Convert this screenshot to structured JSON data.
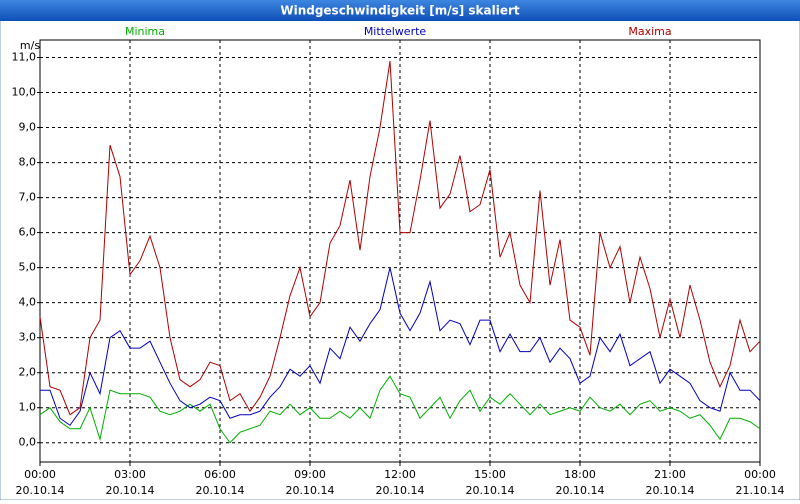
{
  "chart_data": {
    "type": "line",
    "title": "Windgeschwindigkeit [m/s] skaliert",
    "y_label": "m/s",
    "x": [
      0,
      20,
      40,
      60,
      80,
      100,
      120,
      140,
      160,
      180,
      200,
      220,
      240,
      260,
      280,
      300,
      320,
      340,
      360,
      380,
      400,
      420,
      440,
      460,
      480,
      500,
      520,
      540,
      560,
      580,
      600,
      620,
      640,
      660,
      680,
      700,
      720,
      740,
      760,
      780,
      800,
      820,
      840,
      860,
      880,
      900,
      920,
      940,
      960,
      980,
      1000,
      1020,
      1040,
      1060,
      1080,
      1100,
      1120,
      1140,
      1160,
      1180,
      1200,
      1220,
      1240,
      1260,
      1280,
      1300,
      1320,
      1340,
      1360,
      1380,
      1400,
      1420,
      1440
    ],
    "series": [
      {
        "name": "Minima",
        "color": "#00b000",
        "values": [
          0.8,
          1.0,
          0.6,
          0.4,
          0.4,
          1.0,
          0.1,
          1.5,
          1.4,
          1.4,
          1.4,
          1.3,
          0.9,
          0.8,
          0.9,
          1.1,
          0.9,
          1.1,
          0.4,
          0.0,
          0.3,
          0.4,
          0.5,
          0.9,
          0.8,
          1.1,
          0.8,
          1.0,
          0.7,
          0.7,
          0.9,
          0.7,
          1.0,
          0.7,
          1.5,
          1.9,
          1.4,
          1.3,
          0.7,
          1.0,
          1.3,
          0.7,
          1.2,
          1.5,
          0.9,
          1.3,
          1.1,
          1.4,
          1.1,
          0.8,
          1.1,
          0.8,
          0.9,
          1.0,
          0.9,
          1.3,
          1.0,
          0.9,
          1.1,
          0.8,
          1.1,
          1.2,
          0.9,
          1.0,
          0.9,
          0.7,
          0.8,
          0.5,
          0.1,
          0.7,
          0.7,
          0.6,
          0.4
        ]
      },
      {
        "name": "Mittelwerte",
        "color": "#0000c0",
        "values": [
          1.5,
          1.5,
          0.7,
          0.5,
          0.9,
          2.0,
          1.4,
          3.0,
          3.2,
          2.7,
          2.7,
          2.9,
          2.3,
          1.7,
          1.2,
          1.0,
          1.1,
          1.3,
          1.2,
          0.7,
          0.8,
          0.8,
          0.9,
          1.3,
          1.6,
          2.1,
          1.9,
          2.2,
          1.7,
          2.7,
          2.4,
          3.3,
          2.9,
          3.4,
          3.8,
          5.0,
          3.7,
          3.2,
          3.7,
          4.6,
          3.2,
          3.5,
          3.4,
          2.8,
          3.5,
          3.5,
          2.6,
          3.1,
          2.6,
          2.6,
          3.0,
          2.3,
          2.7,
          2.4,
          1.7,
          1.9,
          3.0,
          2.6,
          3.1,
          2.2,
          2.4,
          2.6,
          1.7,
          2.1,
          1.9,
          1.7,
          1.2,
          1.0,
          0.9,
          2.0,
          1.5,
          1.5,
          1.2
        ]
      },
      {
        "name": "Maxima",
        "color": "#b00000",
        "values": [
          3.6,
          1.6,
          1.5,
          0.8,
          1.0,
          3.0,
          3.5,
          8.5,
          7.6,
          4.8,
          5.2,
          5.9,
          5.0,
          3.0,
          1.8,
          1.6,
          1.8,
          2.3,
          2.2,
          1.2,
          1.4,
          0.9,
          1.3,
          1.9,
          3.0,
          4.2,
          5.0,
          3.6,
          4.0,
          5.7,
          6.2,
          7.5,
          5.5,
          7.6,
          9.0,
          10.9,
          6.0,
          6.0,
          7.5,
          9.2,
          6.7,
          7.1,
          8.2,
          6.6,
          6.8,
          7.8,
          5.3,
          6.0,
          4.5,
          4.0,
          7.2,
          4.5,
          5.8,
          3.5,
          3.3,
          2.5,
          6.0,
          5.0,
          5.6,
          4.0,
          5.3,
          4.4,
          3.0,
          4.1,
          3.0,
          4.5,
          3.5,
          2.3,
          1.6,
          2.2,
          3.5,
          2.6,
          2.9
        ]
      }
    ],
    "xlim": [
      0,
      1440
    ],
    "xticks": [
      {
        "value": 0,
        "label": "00:00"
      },
      {
        "value": 180,
        "label": "03:00"
      },
      {
        "value": 360,
        "label": "06:00"
      },
      {
        "value": 540,
        "label": "09:00"
      },
      {
        "value": 720,
        "label": "12:00"
      },
      {
        "value": 900,
        "label": "15:00"
      },
      {
        "value": 1080,
        "label": "18:00"
      },
      {
        "value": 1260,
        "label": "21:00"
      },
      {
        "value": 1440,
        "label": "00:00"
      }
    ],
    "xtick_dates": [
      "20.10.14",
      "20.10.14",
      "20.10.14",
      "20.10.14",
      "20.10.14",
      "20.10.14",
      "20.10.14",
      "20.10.14",
      "21.10.14"
    ],
    "ylim": [
      -0.55,
      11.5
    ],
    "yticks": [
      {
        "value": 0,
        "label": "0,0"
      },
      {
        "value": 1,
        "label": "1,0"
      },
      {
        "value": 2,
        "label": "2,0"
      },
      {
        "value": 3,
        "label": "3,0"
      },
      {
        "value": 4,
        "label": "4,0"
      },
      {
        "value": 5,
        "label": "5,0"
      },
      {
        "value": 6,
        "label": "6,0"
      },
      {
        "value": 7,
        "label": "7,0"
      },
      {
        "value": 8,
        "label": "8,0"
      },
      {
        "value": 9,
        "label": "9,0"
      },
      {
        "value": 10,
        "label": "10,0"
      },
      {
        "value": 11,
        "label": "11,0"
      }
    ],
    "grid": true
  }
}
